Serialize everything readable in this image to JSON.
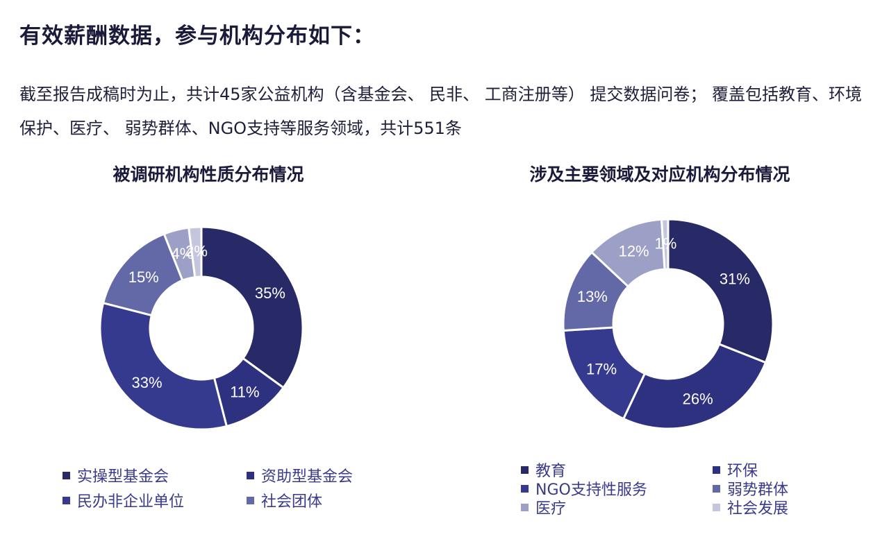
{
  "page": {
    "title": "有效薪酬数据，参与机构分布如下：",
    "intro": "截至报告成稿时为止，共计45家公益机构（含基金会、 民非、 工商注册等） 提交数据问卷； 覆盖包括教育、环境保护、医疗、 弱势群体、NGO支持等服务领域，共计551条"
  },
  "colors": {
    "navy": "#272a66",
    "indigo": "#2e3180",
    "royal": "#363a8e",
    "slate": "#6368a6",
    "lavender": "#9c9fc6",
    "pale": "#c4c6de"
  },
  "chart_data": [
    {
      "type": "pie",
      "style": "donut",
      "title": "被调研机构性质分布情况",
      "categories": [
        "实操型基金会",
        "资助型基金会",
        "民办非企业单位",
        "社会团体",
        "",
        ""
      ],
      "values": [
        35,
        11,
        33,
        15,
        4,
        2
      ],
      "labels": [
        "35%",
        "11%",
        "33%",
        "15%",
        "4%",
        "2%"
      ],
      "colors": [
        "#272a66",
        "#2e3180",
        "#363a8e",
        "#6368a6",
        "#9c9fc6",
        "#c4c6de"
      ],
      "legend": [
        {
          "label": "实操型基金会",
          "color": "#272a66"
        },
        {
          "label": "资助型基金会",
          "color": "#2e3180"
        },
        {
          "label": "民办非企业单位",
          "color": "#363a8e"
        },
        {
          "label": "社会团体",
          "color": "#6368a6"
        }
      ]
    },
    {
      "type": "pie",
      "style": "donut",
      "title": "涉及主要领域及对应机构分布情况",
      "categories": [
        "教育",
        "环保",
        "NGO支持性服务",
        "弱势群体",
        "医疗",
        "社会发展"
      ],
      "values": [
        31,
        26,
        17,
        13,
        12,
        1
      ],
      "labels": [
        "31%",
        "26%",
        "17%",
        "13%",
        "12%",
        "1%"
      ],
      "colors": [
        "#272a66",
        "#2e3180",
        "#363a8e",
        "#6368a6",
        "#9c9fc6",
        "#c4c6de"
      ],
      "legend": [
        {
          "label": "教育",
          "color": "#272a66"
        },
        {
          "label": "环保",
          "color": "#2e3180"
        },
        {
          "label": "NGO支持性服务",
          "color": "#363a8e"
        },
        {
          "label": "弱势群体",
          "color": "#6368a6"
        },
        {
          "label": "医疗",
          "color": "#9c9fc6"
        },
        {
          "label": "社会发展",
          "color": "#c4c6de"
        }
      ]
    }
  ]
}
